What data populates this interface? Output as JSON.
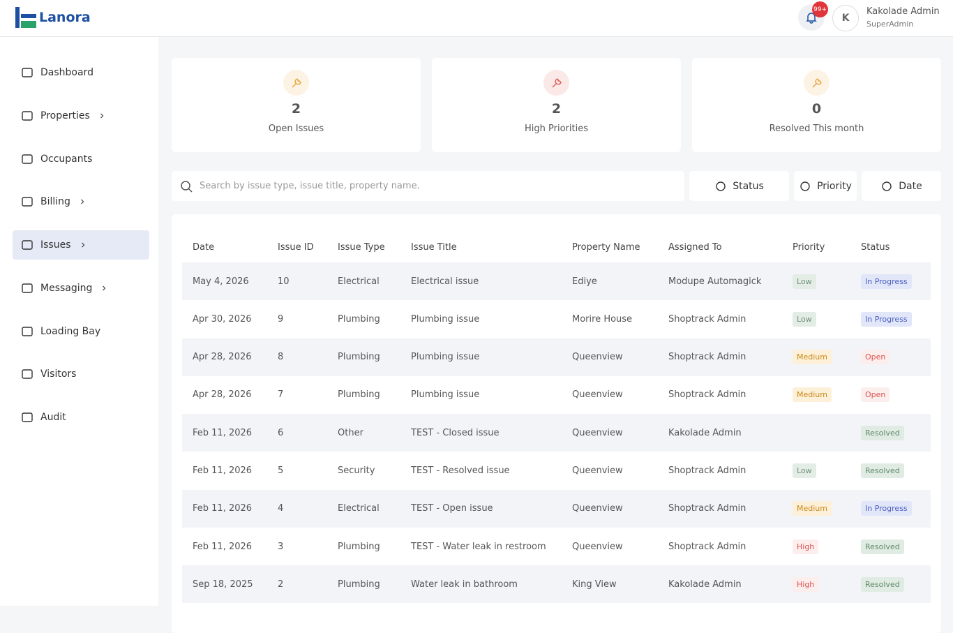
{
  "header": {
    "brand": "Lanora",
    "notification_count": "99+",
    "avatar_initial": "K",
    "user_name": "Kakolade Admin",
    "user_role": "SuperAdmin"
  },
  "nav": [
    {
      "label": "Dashboard"
    },
    {
      "label": "Properties",
      "submenu": true
    },
    {
      "label": "Occupants"
    },
    {
      "label": "Billing",
      "submenu": true
    },
    {
      "label": "Issues",
      "submenu": true,
      "active": true
    },
    {
      "label": "Messaging",
      "submenu": true
    },
    {
      "label": "Loading Bay"
    },
    {
      "label": "Visitors"
    },
    {
      "label": "Audit"
    }
  ],
  "stats": [
    {
      "value": 2,
      "label": "Open Issues",
      "color": "#e5a53a"
    },
    {
      "value": 2,
      "label": "High Priorities",
      "color": "#e05a4f"
    },
    {
      "value": 0,
      "label": "Resolved This month",
      "color": "#e5a53a"
    }
  ],
  "search": {
    "placeholder": "Search by issue type, issue title, property name."
  },
  "filters": [
    "Status",
    "Priority",
    "Date"
  ],
  "table": {
    "columns": [
      "Date",
      "Issue ID",
      "Issue Type",
      "Issue Title",
      "Property Name",
      "Assigned To",
      "Priority",
      "Status"
    ],
    "rows": [
      [
        "May 4, 2026",
        10,
        "Electrical",
        "Electrical issue",
        "Ediye",
        "Modupe Automagick",
        "Low",
        "In Progress"
      ],
      [
        "Apr 30, 2026",
        9,
        "Plumbing",
        "Plumbing issue",
        "Morire House",
        "Shoptrack Admin",
        "Low",
        "In Progress"
      ],
      [
        "Apr 28, 2026",
        8,
        "Plumbing",
        "Plumbing issue",
        "Queenview",
        "Shoptrack Admin",
        "Medium",
        "Open"
      ],
      [
        "Apr 28, 2026",
        7,
        "Plumbing",
        "Plumbing issue",
        "Queenview",
        "Shoptrack Admin",
        "Medium",
        "Open"
      ],
      [
        "Feb 11, 2026",
        6,
        "Other",
        "TEST - Closed issue",
        "Queenview",
        "Kakolade Admin",
        null,
        "Resolved"
      ],
      [
        "Feb 11, 2026",
        5,
        "Security",
        "TEST - Resolved issue",
        "Queenview",
        "Shoptrack Admin",
        "Low",
        "Resolved"
      ],
      [
        "Feb 11, 2026",
        4,
        "Electrical",
        "TEST - Open issue",
        "Queenview",
        "Shoptrack Admin",
        "Medium",
        "In Progress"
      ],
      [
        "Feb 11, 2026",
        3,
        "Plumbing",
        "TEST - Water leak in restroom",
        "Queenview",
        "Shoptrack Admin",
        "High",
        "Resolved"
      ],
      [
        "Sep 18, 2025",
        2,
        "Plumbing",
        "Water leak in bathroom",
        "King View",
        "Kakolade Admin",
        "High",
        "Resolved"
      ]
    ]
  }
}
